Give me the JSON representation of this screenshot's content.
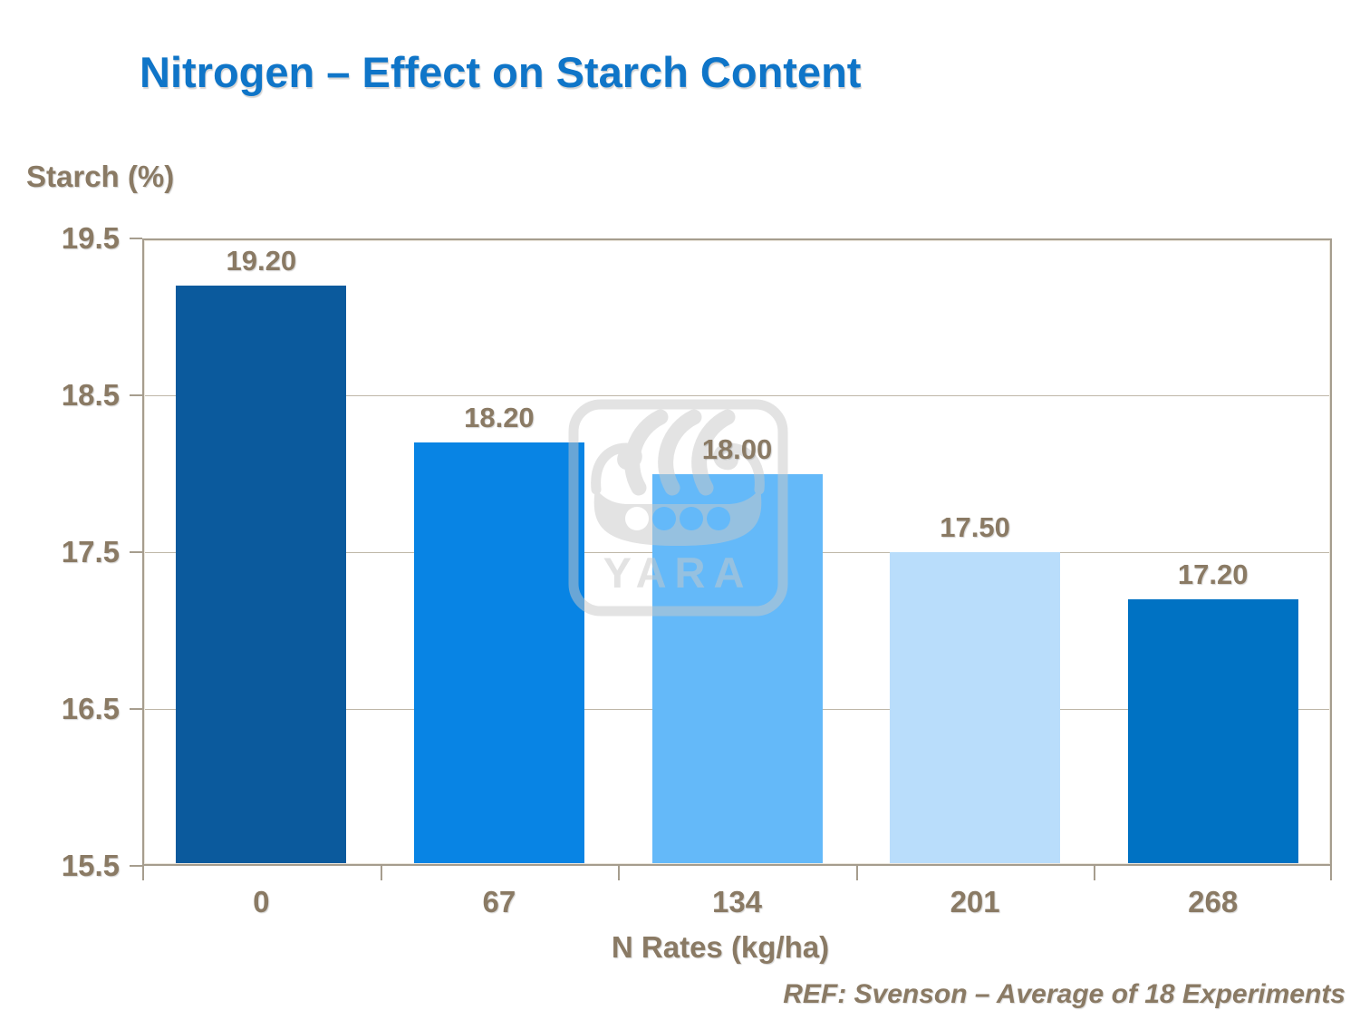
{
  "title": "Nitrogen – Effect on Starch Content",
  "y_axis_title": "Starch (%)",
  "x_axis_title": "N Rates (kg/ha)",
  "reference": "REF: Svenson – Average of 18 Experiments",
  "watermark": {
    "icon": "viking-ship-icon",
    "text": "YARA"
  },
  "colors": {
    "title_blue": "#0F75C8",
    "label_brown": "#8A7A64",
    "plot_border": "#A69D8E",
    "gridline": "#BFB7A8",
    "watermark_gray": "#C9C9C9",
    "bars": [
      "#0B5A9D",
      "#0884E4",
      "#64B9F9",
      "#B9DDFB",
      "#0072C3"
    ]
  },
  "chart_data": {
    "type": "bar",
    "title": "Nitrogen – Effect on Starch Content",
    "xlabel": "N Rates (kg/ha)",
    "ylabel": "Starch (%)",
    "categories": [
      "0",
      "67",
      "134",
      "201",
      "268"
    ],
    "values": [
      19.2,
      18.2,
      18.0,
      17.5,
      17.2
    ],
    "value_labels": [
      "19.20",
      "18.20",
      "18.00",
      "17.50",
      "17.20"
    ],
    "ylim": [
      15.5,
      19.5
    ],
    "yticks": [
      19.5,
      18.5,
      17.5,
      16.5,
      15.5
    ],
    "ytick_labels": [
      "19.5",
      "18.5",
      "17.5",
      "16.5",
      "15.5"
    ],
    "grid": true,
    "legend": false
  }
}
